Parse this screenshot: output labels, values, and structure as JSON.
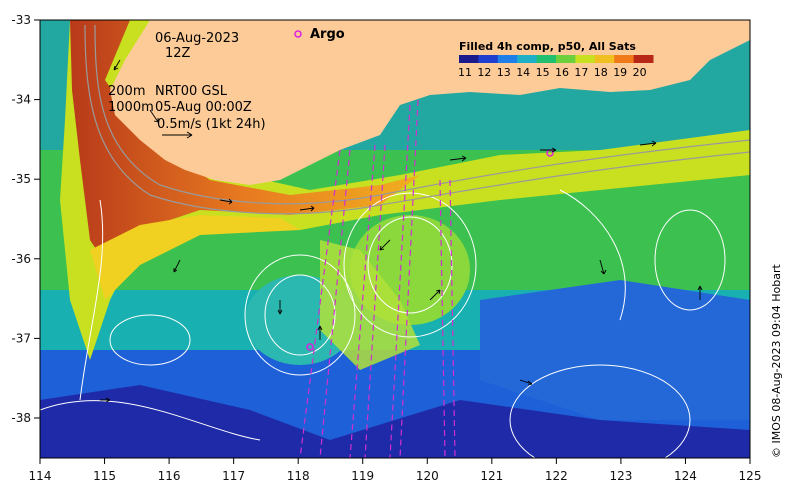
{
  "header": {
    "date": "06-Aug-2023",
    "hour": "12Z",
    "depth_200": "200m",
    "depth_1000": "1000m",
    "model": "NRT00 GSL",
    "model_time": "05-Aug 00:00Z",
    "scale_label": "0.5m/s (1kt 24h)"
  },
  "argo": {
    "label": "Argo",
    "color": "#e020e0"
  },
  "legend": {
    "title": "Filled 4h comp, p50, All Sats",
    "values": [
      "11",
      "12",
      "13",
      "14",
      "15",
      "16",
      "17",
      "18",
      "19",
      "20"
    ],
    "colors": [
      "#1a1a8c",
      "#1f3fd0",
      "#1f7fe8",
      "#1fb0c8",
      "#20c070",
      "#6cd03c",
      "#c8e020",
      "#f0c020",
      "#f07a1a",
      "#b82818"
    ]
  },
  "axes": {
    "x_ticks": [
      "114",
      "115",
      "116",
      "117",
      "118",
      "119",
      "120",
      "121",
      "122",
      "123",
      "124",
      "125"
    ],
    "y_ticks": [
      "-33",
      "-34",
      "-35",
      "-36",
      "-37",
      "-38"
    ]
  },
  "credit": "© IMOS 08-Aug-2023 09:04 Hobart",
  "colors": {
    "land": "#fccb98",
    "frame": "#000000"
  }
}
